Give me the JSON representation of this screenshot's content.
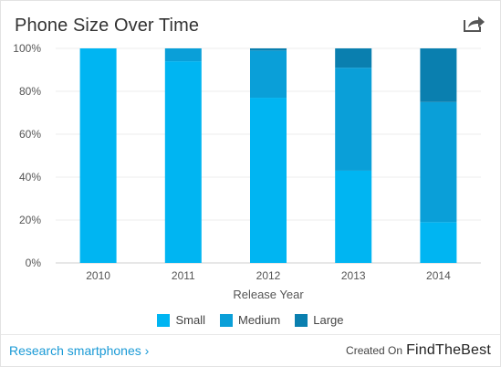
{
  "header": {
    "title": "Phone Size Over Time",
    "share_icon": "share-icon"
  },
  "chart_data": {
    "type": "bar",
    "stacked": true,
    "categories": [
      "2010",
      "2011",
      "2012",
      "2013",
      "2014"
    ],
    "series": [
      {
        "name": "Small",
        "color": "#00b5f2",
        "values": [
          100,
          94,
          77,
          43,
          19
        ]
      },
      {
        "name": "Medium",
        "color": "#0a9fd8",
        "values": [
          0,
          6,
          22,
          48,
          56
        ]
      },
      {
        "name": "Large",
        "color": "#0a7faf",
        "values": [
          0,
          0,
          1,
          9,
          25
        ]
      }
    ],
    "title": "Phone Size Over Time",
    "xlabel": "Release Year",
    "ylabel": "",
    "ylim": [
      0,
      100
    ],
    "yticks": [
      "0%",
      "20%",
      "40%",
      "60%",
      "80%",
      "100%"
    ],
    "grid": true,
    "legend": "bottom"
  },
  "footer": {
    "link_label": "Research smartphones ›",
    "created_on": "Created On",
    "brand": "FindTheBest"
  }
}
